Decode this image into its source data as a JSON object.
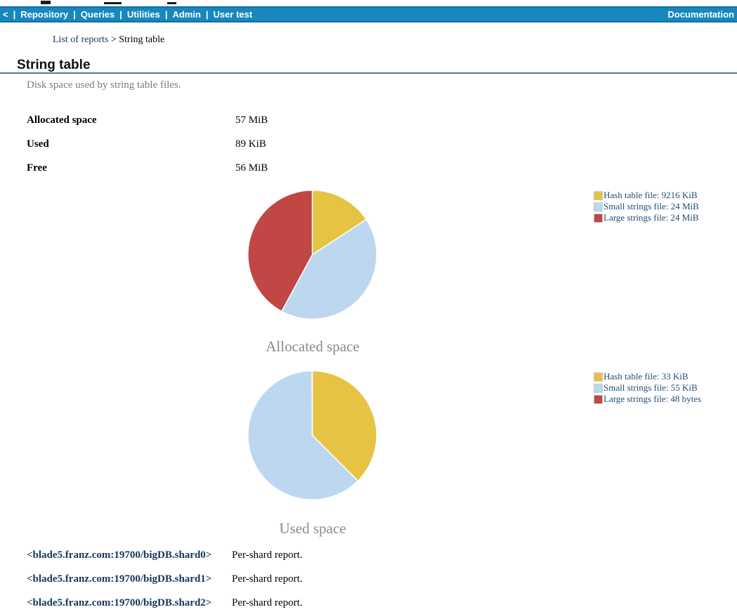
{
  "nav": {
    "back_label": "<",
    "separator": "|",
    "items": [
      "Repository",
      "Queries",
      "Utilities",
      "Admin",
      "User test"
    ],
    "right_label": "Documentation",
    "bar_color": "#1787bd",
    "bar_border_color": "#0f6f9f"
  },
  "breadcrumb": {
    "link": "List of reports",
    "separator": ">",
    "current": "String table"
  },
  "page": {
    "title": "String table",
    "subtitle": "Disk space used by string table files.",
    "rule_color": "#4e7d99"
  },
  "stats": [
    {
      "label": "Allocated space",
      "value": "57 MiB"
    },
    {
      "label": "Used",
      "value": "89 KiB"
    },
    {
      "label": "Free",
      "value": "56 MiB"
    }
  ],
  "chart_data": [
    {
      "type": "pie",
      "title": "Allocated space",
      "unit": "KiB",
      "start_angle_deg": 0,
      "direction": "clockwise",
      "legend_position": "right",
      "slices": [
        {
          "label": "Hash table file",
          "value": 9216,
          "value_text": "9216 KiB",
          "legend_text": "Hash table file: 9216 KiB",
          "color": "#e6c343"
        },
        {
          "label": "Small strings file",
          "value": 24576,
          "value_text": "24 MiB",
          "legend_text": "Small strings file: 24 MiB",
          "color": "#bdd7f0"
        },
        {
          "label": "Large strings file",
          "value": 24576,
          "value_text": "24 MiB",
          "legend_text": "Large strings file: 24 MiB",
          "color": "#c04744"
        }
      ]
    },
    {
      "type": "pie",
      "title": "Used space",
      "unit": "bytes",
      "start_angle_deg": 0,
      "direction": "clockwise",
      "legend_position": "right",
      "slices": [
        {
          "label": "Hash table file",
          "value": 33792,
          "value_text": "33 KiB",
          "legend_text": "Hash table file: 33 KiB",
          "color": "#e6c343"
        },
        {
          "label": "Small strings file",
          "value": 56320,
          "value_text": "55 KiB",
          "legend_text": "Small strings file: 55 KiB",
          "color": "#bdd7f0"
        },
        {
          "label": "Large strings file",
          "value": 48,
          "value_text": "48 bytes",
          "legend_text": "Large strings file: 48 bytes",
          "color": "#c04744"
        }
      ]
    }
  ],
  "shard_reports": [
    {
      "link": "<blade5.franz.com:19700/bigDB.shard0>",
      "description": "Per-shard report."
    },
    {
      "link": "<blade5.franz.com:19700/bigDB.shard1>",
      "description": "Per-shard report."
    },
    {
      "link": "<blade5.franz.com:19700/bigDB.shard2>",
      "description": "Per-shard report."
    }
  ]
}
